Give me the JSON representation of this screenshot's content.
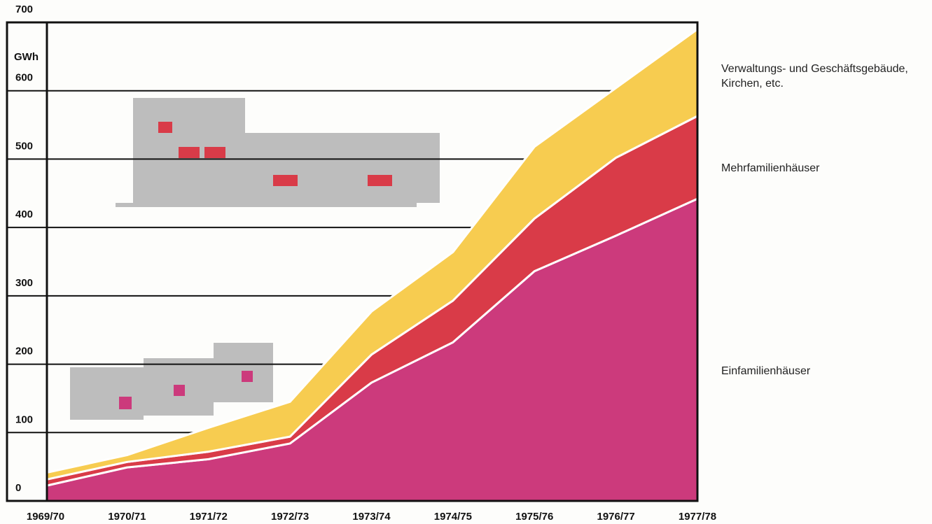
{
  "chart_data": {
    "type": "stacked_area",
    "y_label": "GWh",
    "categories": [
      "1969/70",
      "1970/71",
      "1971/72",
      "1972/73",
      "1973/74",
      "1974/75",
      "1975/76",
      "1976/77",
      "1977/78"
    ],
    "series": [
      {
        "name": "Einfamilienhäuser",
        "color": "#cc3a7c",
        "values": [
          22,
          49,
          61,
          84,
          173,
          232,
          336,
          388,
          442
        ]
      },
      {
        "name": "Mehrfamilienhäuser",
        "color": "#d93b48",
        "values": [
          9,
          8,
          11,
          10,
          41,
          61,
          77,
          114,
          121
        ]
      },
      {
        "name": "Verwaltungs- und Geschäftsgebäude, Kirchen, etc.",
        "color": "#f7cc50",
        "values": [
          10,
          10,
          35,
          51,
          63,
          71,
          105,
          102,
          127
        ]
      }
    ],
    "ylim": [
      0,
      700
    ],
    "yticks": [
      0,
      100,
      200,
      300,
      400,
      500,
      600,
      700
    ],
    "grid": true
  }
}
